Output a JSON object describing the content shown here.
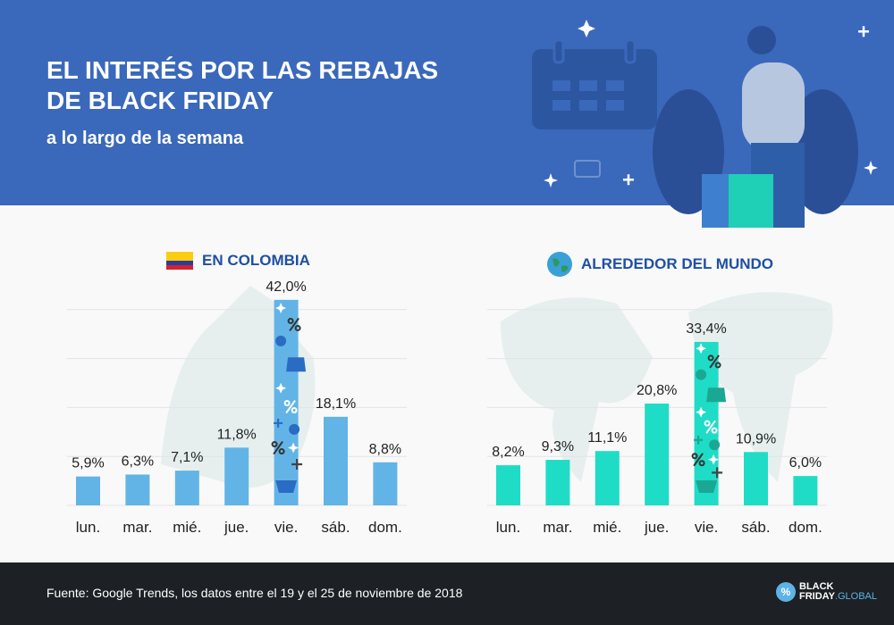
{
  "header": {
    "title": "EL INTERÉS POR LAS REBAJAS DE BLACK FRIDAY",
    "subtitle": "a lo largo de la semana"
  },
  "footer": {
    "source": "Fuente: Google Trends, los datos entre el 19 y el 25 de noviembre de 2018",
    "logo_line1": "BLACK",
    "logo_line2": "FRIDAY",
    "logo_line3": ".GLOBAL",
    "logo_symbol": "%"
  },
  "chart_data": [
    {
      "type": "bar",
      "title": "EN COLOMBIA",
      "icon": "colombia-flag-icon",
      "color": "#62b4e6",
      "categories": [
        "lun.",
        "mar.",
        "mié.",
        "jue.",
        "vie.",
        "sáb.",
        "dom."
      ],
      "values": [
        5.9,
        6.3,
        7.1,
        11.8,
        42.0,
        18.1,
        8.8
      ],
      "labels": [
        "5,9%",
        "6,3%",
        "7,1%",
        "11,8%",
        "42,0%",
        "18,1%",
        "8,8%"
      ],
      "ylim": [
        0,
        42
      ],
      "grid": true
    },
    {
      "type": "bar",
      "title": "ALREDEDOR DEL MUNDO",
      "icon": "globe-icon",
      "color": "#1fdcc6",
      "categories": [
        "lun.",
        "mar.",
        "mié.",
        "jue.",
        "vie.",
        "sáb.",
        "dom."
      ],
      "values": [
        8.2,
        9.3,
        11.1,
        20.8,
        33.4,
        10.9,
        6.0
      ],
      "labels": [
        "8,2%",
        "9,3%",
        "11,1%",
        "20,8%",
        "33,4%",
        "10,9%",
        "6,0%"
      ],
      "ylim": [
        0,
        42
      ],
      "grid": true
    }
  ]
}
